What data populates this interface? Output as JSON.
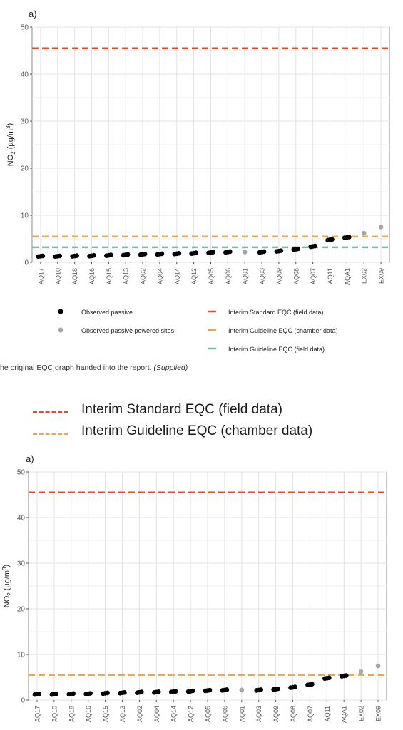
{
  "top_figure": {
    "panel_label": "a)",
    "legend": [
      {
        "label": "Observed passive",
        "kind": "point",
        "color": "#000000"
      },
      {
        "label": "Observed passive powered sites",
        "kind": "point",
        "color": "#a6a6a6"
      },
      {
        "label": "Interim Standard EQC (field data)",
        "kind": "dash",
        "color": "#d9502c"
      },
      {
        "label": "Interim Guideline EQC (chamber data)",
        "kind": "dash",
        "color": "#e8a855"
      },
      {
        "label": "Interim Guideline EQC (field data)",
        "kind": "dash",
        "color": "#6fbfa8"
      }
    ]
  },
  "caption": {
    "text": "he original EQC graph handed into the report. ",
    "supplied": "(Supplied)"
  },
  "bottom_figure": {
    "panel_label": "a)",
    "legend": [
      {
        "label": "Interim Standard EQC (field data)",
        "color": "#d9502c"
      },
      {
        "label": "Interim Guideline EQC (chamber data)",
        "color": "#e8a855"
      }
    ]
  },
  "chart_data": [
    {
      "type": "scatter",
      "title": "",
      "xlabel": "",
      "ylabel": "NO2 (µg/m3)",
      "ylim": [
        0,
        50
      ],
      "yticks": [
        0,
        10,
        20,
        30,
        40,
        50
      ],
      "grid": true,
      "legend_position": "bottom",
      "categories": [
        "AQ17",
        "AQ10",
        "AQ18",
        "AQ16",
        "AQ15",
        "AQ13",
        "AQ02",
        "AQ04",
        "AQ14",
        "AQ12",
        "AQ05",
        "AQ06",
        "AQ01",
        "AQ03",
        "AQ09",
        "AQ08",
        "AQ07",
        "AQ11",
        "AQA1",
        "EX02",
        "EX09"
      ],
      "series": [
        {
          "name": "Observed passive",
          "color": "#000000",
          "values": [
            1.3,
            1.3,
            1.35,
            1.4,
            1.5,
            1.6,
            1.7,
            1.75,
            1.85,
            1.95,
            2.1,
            2.2,
            null,
            2.2,
            2.4,
            2.8,
            3.4,
            4.8,
            5.3,
            null,
            null
          ]
        },
        {
          "name": "Observed passive powered sites",
          "color": "#a6a6a6",
          "values": [
            null,
            null,
            null,
            null,
            null,
            null,
            null,
            null,
            null,
            null,
            null,
            null,
            2.2,
            null,
            null,
            null,
            null,
            null,
            null,
            6.2,
            7.5
          ]
        }
      ],
      "reference_lines": [
        {
          "name": "Interim Standard EQC (field data)",
          "y": 45.5,
          "color": "#d9502c"
        },
        {
          "name": "Interim Guideline EQC (chamber data)",
          "y": 5.5,
          "color": "#e8a855"
        },
        {
          "name": "Interim Guideline EQC (field data)",
          "y": 3.2,
          "color": "#6fbfa8"
        }
      ]
    },
    {
      "type": "scatter",
      "title": "",
      "xlabel": "",
      "ylabel": "NO2 (µg/m3)",
      "ylim": [
        0,
        50
      ],
      "yticks": [
        0,
        10,
        20,
        30,
        40,
        50
      ],
      "grid": true,
      "legend_position": "top",
      "categories": [
        "AQ17",
        "AQ10",
        "AQ18",
        "AQ16",
        "AQ15",
        "AQ13",
        "AQ02",
        "AQ04",
        "AQ14",
        "AQ12",
        "AQ05",
        "AQ06",
        "AQ01",
        "AQ03",
        "AQ09",
        "AQ08",
        "AQ07",
        "AQ11",
        "AQA1",
        "EX02",
        "EX09"
      ],
      "series": [
        {
          "name": "Observed passive",
          "color": "#000000",
          "values": [
            1.3,
            1.3,
            1.35,
            1.4,
            1.5,
            1.6,
            1.7,
            1.75,
            1.85,
            1.95,
            2.1,
            2.2,
            null,
            2.2,
            2.4,
            2.8,
            3.4,
            4.8,
            5.3,
            null,
            null
          ]
        },
        {
          "name": "Observed passive powered sites",
          "color": "#a6a6a6",
          "values": [
            null,
            null,
            null,
            null,
            null,
            null,
            null,
            null,
            null,
            null,
            null,
            null,
            2.2,
            null,
            null,
            null,
            null,
            null,
            null,
            6.2,
            7.5
          ]
        }
      ],
      "reference_lines": [
        {
          "name": "Interim Standard EQC (field data)",
          "y": 45.5,
          "color": "#d9502c"
        },
        {
          "name": "Interim Guideline EQC (chamber data)",
          "y": 5.5,
          "color": "#e8a855"
        }
      ]
    }
  ]
}
